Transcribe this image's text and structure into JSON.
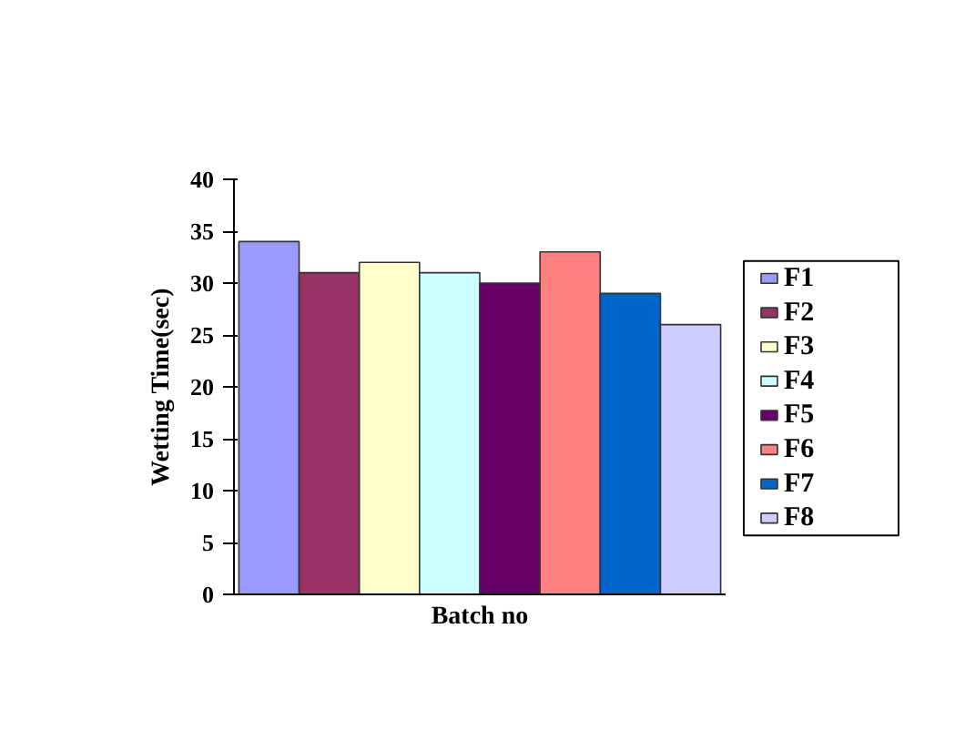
{
  "chart_data": {
    "type": "bar",
    "xlabel": "Batch no",
    "ylabel": "Wetting Time(sec)",
    "categories": [
      null
    ],
    "series": [
      {
        "name": "F1",
        "color": "#9999ff",
        "values": [
          34
        ]
      },
      {
        "name": "F2",
        "color": "#993366",
        "values": [
          31
        ]
      },
      {
        "name": "F3",
        "color": "#ffffcc",
        "values": [
          32
        ]
      },
      {
        "name": "F4",
        "color": "#ccffff",
        "values": [
          31
        ]
      },
      {
        "name": "F5",
        "color": "#660066",
        "values": [
          30
        ]
      },
      {
        "name": "F6",
        "color": "#ff8080",
        "values": [
          33
        ]
      },
      {
        "name": "F7",
        "color": "#0066cc",
        "values": [
          29
        ]
      },
      {
        "name": "F8",
        "color": "#ccccff",
        "values": [
          26
        ]
      }
    ],
    "ylim": [
      0,
      40
    ],
    "yticks": [
      0,
      5,
      10,
      15,
      20,
      25,
      30,
      35,
      40
    ],
    "grid": false,
    "legend": "right"
  }
}
